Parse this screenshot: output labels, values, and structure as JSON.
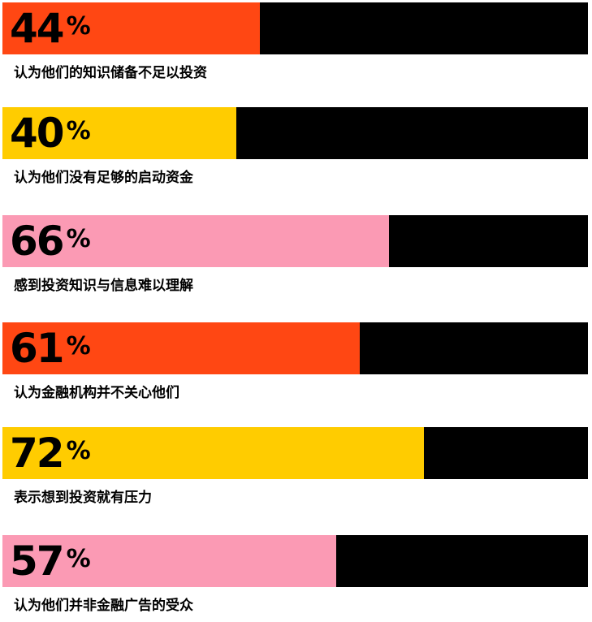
{
  "chart_data": {
    "type": "bar",
    "orientation": "horizontal",
    "value_max": 100,
    "unit": "%",
    "bars": [
      {
        "value": 44,
        "label": "认为他们的知识储备不足以投资",
        "color": "#ff4713"
      },
      {
        "value": 40,
        "label": "认为他们没有足够的启动资金",
        "color": "#ffcc00"
      },
      {
        "value": 66,
        "label": "感到投资知识与信息难以理解",
        "color": "#fb9ab4"
      },
      {
        "value": 61,
        "label": "认为金融机构并不关心他们",
        "color": "#ff4713"
      },
      {
        "value": 72,
        "label": "表示想到投资就有压力",
        "color": "#ffcc00"
      },
      {
        "value": 57,
        "label": "认为他们并非金融广告的受众",
        "color": "#fb9ab4"
      }
    ]
  },
  "track_color": "#000000"
}
